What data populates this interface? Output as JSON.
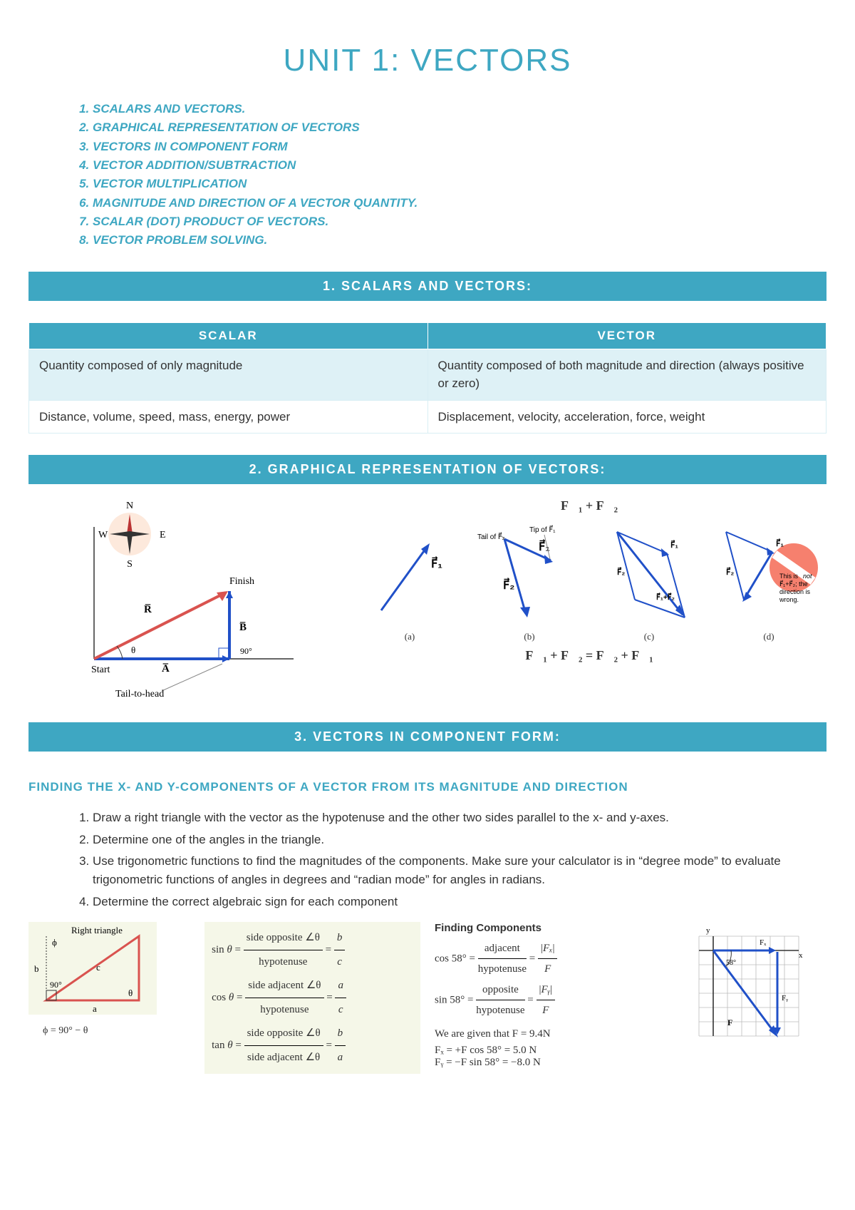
{
  "colors": {
    "accent": "#3ea7c2",
    "bar_bg": "#3ea7c2",
    "table_header_bg": "#3ea7c2",
    "table_row_alt": "#def1f6",
    "body_text": "#333333",
    "diagram_blue": "#2050c8",
    "diagram_red": "#d9534f",
    "diagram_bg_tint": "#f5f7e8"
  },
  "title": "UNIT 1: VECTORS",
  "toc": [
    "SCALARS AND VECTORS.",
    "GRAPHICAL REPRESENTATION OF VECTORS",
    "VECTORS IN COMPONENT FORM",
    "VECTOR ADDITION/SUBTRACTION",
    "VECTOR MULTIPLICATION",
    "MAGNITUDE AND DIRECTION OF A VECTOR QUANTITY.",
    "SCALAR (DOT) PRODUCT OF VECTORS.",
    "VECTOR PROBLEM SOLVING."
  ],
  "sections": {
    "s1": "1. SCALARS AND VECTORS:",
    "s2": "2. GRAPHICAL REPRESENTATION OF VECTORS:",
    "s3": "3. VECTORS IN COMPONENT FORM:"
  },
  "table": {
    "headers": [
      "SCALAR",
      "VECTOR"
    ],
    "rows": [
      [
        "Quantity composed of only magnitude",
        "Quantity composed of both magnitude and direction (always positive or zero)"
      ],
      [
        "Distance, volume, speed, mass, energy, power",
        "Displacement, velocity, acceleration, force, weight"
      ]
    ]
  },
  "graphical": {
    "compass": {
      "labels": [
        "N",
        "E",
        "S",
        "W"
      ]
    },
    "tail_to_head": {
      "start": "Start",
      "finish": "Finish",
      "vec_a": "A̅",
      "vec_b": "B̅",
      "vec_r": "R̅",
      "angle": "θ",
      "right": "90°",
      "caption": "Tail-to-head"
    },
    "top_eq": "F⃗₁ + F⃗₂",
    "bottom_eq": "F⃗₁ + F⃗₂ = F⃗₂ + F⃗₁",
    "panel_b": {
      "tail_label": "Tail of F⃗₂",
      "tip_label": "Tip of F⃗₁",
      "f1": "F⃗₁",
      "f2": "F⃗₂",
      "cap": "(b)"
    },
    "panel_a": {
      "f1": "F⃗₁",
      "cap": "(a)"
    },
    "panel_c": {
      "f1": "F⃗₁",
      "f2": "F⃗₂",
      "sum": "F⃗₁ + F⃗₂",
      "cap": "(c)"
    },
    "panel_d": {
      "f1": "F⃗₁",
      "f2": "F⃗₂",
      "note": "This is not F⃗₁ + F⃗₂; the direction is wrong.",
      "cap": "(d)"
    }
  },
  "components": {
    "heading": "FINDING THE X- AND Y-COMPONENTS OF A VECTOR FROM ITS MAGNITUDE AND DIRECTION",
    "steps": [
      "Draw a right triangle with the vector as the hypotenuse and the other two sides parallel to the x- and y-axes.",
      "Determine one of the angles in the triangle.",
      "Use trigonometric functions to find the magnitudes of the components. Make sure your calculator is in “degree mode” to evaluate trigonometric functions of angles in degrees and “radian mode” for angles in radians.",
      "Determine the correct algebraic sign for each component"
    ],
    "right_triangle": {
      "title": "Right triangle",
      "a": "a",
      "b": "b",
      "c": "c",
      "phi": "ϕ",
      "theta": "θ",
      "ninety": "90°",
      "relation": "ϕ = 90° − θ"
    },
    "trig_defs": {
      "sin": "sin θ = side opposite ∠θ / hypotenuse = b / c",
      "cos": "cos θ = side adjacent ∠θ / hypotenuse = a / c",
      "tan": "tan θ = side opposite ∠θ / side adjacent ∠θ = b / a"
    },
    "finding": {
      "title": "Finding Components",
      "cos58": "cos 58° = adjacent / hypotenuse = |Fₓ| / F",
      "sin58": "sin 58° = opposite / hypotenuse = |Fᵧ| / F",
      "given": "We are given that F = 9.4N",
      "fx": "Fₓ = +F cos 58° = 5.0 N",
      "fy": "Fᵧ = −F sin 58° = −8.0 N"
    },
    "grid_diagram": {
      "angle": "58°",
      "fx": "Fₓ",
      "fy": "Fᵧ",
      "f": "F⃗",
      "y": "y",
      "x": "x"
    }
  }
}
